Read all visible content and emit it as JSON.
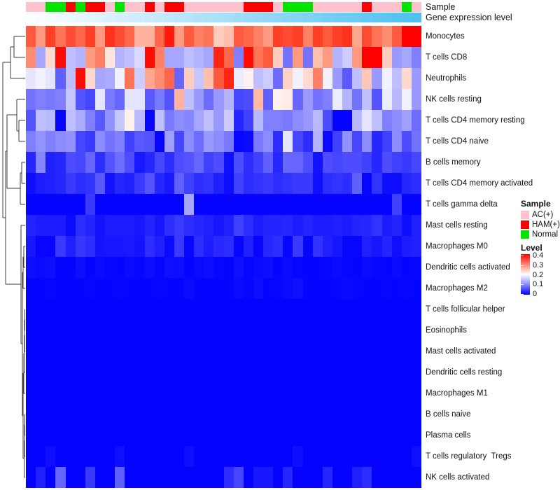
{
  "annotations": {
    "sample": {
      "label": "Sample",
      "colors": {
        "AC(+)": "#FFC2CD",
        "HAM(+)": "#FF0000",
        "Normal": "#00E400"
      }
    },
    "gene": {
      "label": "Gene expression level",
      "gradient_low": "#FDFEFF",
      "gradient_high": "#4FC0F0"
    }
  },
  "legend": {
    "sample": {
      "title": "Sample",
      "items": [
        {
          "label": "AC(+)",
          "color": "#FFC2CD"
        },
        {
          "label": "HAM(+)",
          "color": "#FF0000"
        },
        {
          "label": "Normal",
          "color": "#00E400"
        }
      ]
    },
    "level": {
      "title": "Level",
      "ticks": [
        "0.4",
        "0.3",
        "0.2",
        "0.1",
        "0"
      ]
    }
  },
  "chart_data": {
    "type": "heatmap",
    "n_columns": 40,
    "value_range": [
      0,
      0.4
    ],
    "colormap": {
      "low": "#0000FF",
      "mid": "#FFFFFF",
      "high": "#FF0000",
      "midpoint": 0.2
    },
    "rows": [
      "Monocytes",
      "T cells CD8",
      "Neutrophils",
      "NK cells resting",
      "T cells CD4 memory resting",
      "T cells CD4 naive",
      "B cells memory",
      "T cells CD4 memory activated",
      "T cells gamma delta",
      "Mast cells resting",
      "Macrophages M0",
      "Dendritic cells activated",
      "Macrophages M2",
      "T cells follicular helper",
      "Eosinophils",
      "Mast cells activated",
      "Dendritic cells resting",
      "Macrophages M1",
      "B cells naive",
      "Plasma cells",
      "T cells regulatory  Tregs",
      "NK cells activated"
    ],
    "column_annotation_sample": [
      "AC(+)",
      "AC(+)",
      "Normal",
      "Normal",
      "HAM(+)",
      "Normal",
      "HAM(+)",
      "HAM(+)",
      "AC(+)",
      "Normal",
      "AC(+)",
      "AC(+)",
      "HAM(+)",
      "AC(+)",
      "HAM(+)",
      "HAM(+)",
      "AC(+)",
      "AC(+)",
      "AC(+)",
      "AC(+)",
      "AC(+)",
      "AC(+)",
      "HAM(+)",
      "HAM(+)",
      "HAM(+)",
      "AC(+)",
      "Normal",
      "Normal",
      "Normal",
      "AC(+)",
      "AC(+)",
      "AC(+)",
      "AC(+)",
      "AC(+)",
      "HAM(+)",
      "AC(+)",
      "AC(+)",
      "AC(+)",
      "Normal",
      "AC(+)"
    ],
    "column_annotation_gene_expression": [
      0,
      0.026,
      0.051,
      0.077,
      0.103,
      0.128,
      0.154,
      0.179,
      0.205,
      0.231,
      0.256,
      0.282,
      0.308,
      0.333,
      0.359,
      0.385,
      0.41,
      0.436,
      0.462,
      0.487,
      0.513,
      0.538,
      0.564,
      0.59,
      0.615,
      0.641,
      0.667,
      0.692,
      0.718,
      0.744,
      0.769,
      0.795,
      0.821,
      0.846,
      0.872,
      0.897,
      0.923,
      0.949,
      0.974,
      1
    ],
    "values": [
      [
        0.33,
        0.28,
        0.35,
        0.31,
        0.34,
        0.32,
        0.35,
        0.28,
        0.36,
        0.34,
        0.32,
        0.26,
        0.26,
        0.32,
        0.38,
        0.28,
        0.33,
        0.3,
        0.31,
        0.24,
        0.25,
        0.33,
        0.32,
        0.3,
        0.28,
        0.35,
        0.34,
        0.35,
        0.3,
        0.35,
        0.33,
        0.35,
        0.36,
        0.27,
        0.34,
        0.31,
        0.29,
        0.33,
        0.4,
        0.4
      ],
      [
        0.29,
        0.13,
        0.23,
        0.39,
        0.15,
        0.14,
        0.28,
        0.3,
        0.22,
        0.14,
        0.15,
        0.17,
        0.39,
        0.3,
        0.13,
        0.13,
        0.15,
        0.14,
        0.13,
        0.37,
        0.32,
        0.1,
        0.39,
        0.31,
        0.33,
        0.24,
        0.09,
        0.28,
        0.09,
        0.25,
        0.28,
        0.14,
        0.16,
        0.28,
        0.4,
        0.4,
        0.24,
        0.12,
        0.13,
        0.1
      ],
      [
        0.18,
        0.19,
        0.18,
        0.075,
        0.15,
        0.39,
        0.23,
        0.13,
        0.135,
        0.19,
        0.31,
        0.16,
        0.27,
        0.29,
        0.32,
        0.08,
        0.24,
        0.155,
        0.25,
        0.33,
        0.37,
        0.185,
        0.21,
        0.15,
        0.16,
        0.085,
        0.235,
        0.19,
        0.23,
        0.3,
        0.19,
        0.12,
        0.07,
        0.15,
        0.245,
        0.12,
        0.19,
        0.15,
        0.23,
        0.12
      ],
      [
        0.09,
        0.1,
        0.095,
        0.1,
        0.155,
        0.065,
        0.055,
        0.18,
        0.095,
        0.08,
        0.18,
        0.18,
        0.07,
        0.095,
        0.065,
        0.26,
        0.15,
        0.12,
        0.085,
        0.12,
        0.14,
        0.055,
        0.06,
        0.255,
        0.075,
        0.21,
        0.215,
        0.08,
        0.12,
        0.09,
        0.1,
        0.185,
        0.14,
        0.09,
        0.15,
        0.065,
        0.185,
        0.145,
        0.19,
        0.12
      ],
      [
        0.065,
        0.15,
        0.145,
        0.005,
        0.15,
        0.135,
        0.1,
        0.07,
        0.115,
        0.155,
        0.21,
        0.145,
        0.005,
        0.15,
        0.095,
        0.11,
        0.105,
        0.13,
        0.15,
        0.12,
        0.16,
        0.03,
        0.05,
        0.145,
        0.1,
        0.1,
        0.095,
        0.11,
        0.12,
        0.145,
        0.06,
        0.003,
        0.003,
        0.145,
        0.18,
        0.15,
        0.1,
        0.11,
        0.125,
        0.085
      ],
      [
        0.1,
        0.115,
        0.1,
        0.11,
        0.115,
        0.055,
        0.045,
        0.11,
        0.09,
        0.1,
        0.05,
        0.07,
        0.065,
        0.005,
        0.125,
        0.055,
        0.11,
        0.085,
        0.12,
        0.11,
        0.095,
        0.005,
        0.008,
        0.095,
        0.11,
        0.035,
        0.18,
        0.055,
        0.035,
        0.14,
        0.008,
        0.05,
        0.115,
        0.055,
        0.11,
        0.03,
        0.05,
        0.11,
        0.06,
        0.09
      ],
      [
        0.03,
        0.105,
        0.025,
        0.03,
        0.06,
        0.055,
        0.08,
        0.035,
        0.065,
        0.085,
        0.06,
        0.02,
        0.03,
        0.055,
        0.035,
        0.06,
        0.065,
        0.08,
        0.05,
        0.06,
        0.012,
        0.06,
        0.035,
        0.05,
        0.075,
        0.03,
        0.08,
        0.08,
        0.06,
        0.015,
        0.06,
        0.055,
        0.06,
        0.06,
        0.05,
        0.03,
        0.06,
        0.05,
        0.045,
        0.055
      ],
      [
        0.012,
        0.022,
        0.025,
        0.03,
        0.045,
        0.035,
        0.04,
        0.07,
        0.015,
        0.03,
        0.025,
        0.045,
        0.065,
        0.03,
        0.02,
        0.075,
        0.05,
        0.035,
        0.04,
        0.025,
        0.01,
        0.05,
        0.035,
        0.04,
        0.045,
        0.035,
        0.04,
        0.045,
        0.045,
        0.012,
        0.035,
        0.04,
        0.035,
        0.075,
        0.005,
        0.04,
        0.01,
        0.01,
        0.03,
        0.035
      ],
      [
        0.003,
        0.003,
        0.003,
        0.003,
        0.003,
        0.003,
        0.045,
        0.003,
        0.003,
        0.003,
        0.003,
        0.003,
        0.003,
        0.003,
        0.003,
        0.003,
        0.13,
        0.003,
        0.003,
        0.003,
        0.003,
        0.003,
        0.003,
        0.003,
        0.003,
        0.003,
        0.003,
        0.003,
        0.003,
        0.003,
        0.003,
        0.003,
        0.003,
        0.003,
        0.003,
        0.003,
        0.003,
        0.05,
        0.003,
        0.003
      ],
      [
        0.028,
        0.022,
        0.022,
        0.022,
        0.008,
        0.035,
        0.028,
        0.015,
        0.022,
        0.022,
        0.022,
        0.018,
        0.028,
        0.018,
        0.035,
        0.045,
        0.035,
        0.03,
        0.025,
        0.018,
        0.025,
        0.05,
        0.035,
        0.022,
        0.028,
        0.028,
        0.03,
        0.022,
        0.028,
        0.022,
        0.022,
        0.025,
        0.022,
        0.028,
        0.03,
        0.04,
        0.022,
        0.028,
        0.012,
        0.025
      ],
      [
        0.018,
        0.005,
        0.005,
        0.045,
        0.025,
        0.042,
        0.035,
        0.015,
        0.018,
        0.018,
        0.02,
        0.015,
        0.035,
        0.025,
        0.008,
        0.045,
        0.005,
        0.035,
        0.022,
        0.032,
        0.035,
        0.005,
        0.025,
        0.005,
        0.03,
        0.035,
        0.005,
        0.045,
        0.005,
        0.04,
        0.025,
        0.018,
        0.005,
        0.005,
        0.025,
        0.018,
        0.028,
        0.012,
        0.022,
        0.025
      ],
      [
        0.01,
        0.008,
        0.012,
        0.003,
        0.003,
        0.01,
        0.003,
        0.008,
        0.005,
        0.003,
        0.008,
        0.005,
        0.01,
        0.005,
        0.012,
        0.01,
        0.003,
        0.008,
        0.01,
        0.005,
        0.003,
        0.012,
        0.005,
        0.008,
        0.01,
        0.003,
        0.008,
        0.005,
        0.003,
        0.003,
        0.005,
        0.008,
        0.005,
        0.003,
        0.008,
        0.005,
        0.003,
        0.008,
        0.003,
        0.005
      ],
      [
        0.003,
        0.003,
        0.005,
        0.003,
        0.003,
        0.003,
        0.005,
        0.003,
        0.003,
        0.005,
        0.003,
        0.003,
        0.003,
        0.005,
        0.003,
        0.003,
        0.008,
        0.003,
        0.003,
        0.003,
        0.003,
        0.008,
        0.005,
        0.01,
        0.003,
        0.005,
        0.008,
        0.012,
        0.003,
        0.003,
        0.003,
        0.005,
        0.008,
        0.005,
        0.003,
        0.003,
        0.005,
        0.003,
        0.005,
        0.003
      ],
      [
        0.002,
        0.002,
        0.002,
        0.002,
        0.002,
        0.002,
        0.002,
        0.002,
        0.002,
        0.002,
        0.002,
        0.002,
        0.002,
        0.002,
        0.002,
        0.002,
        0.002,
        0.002,
        0.002,
        0.002,
        0.002,
        0.002,
        0.002,
        0.002,
        0.002,
        0.002,
        0.002,
        0.002,
        0.002,
        0.002,
        0.002,
        0.002,
        0.002,
        0.002,
        0.002,
        0.002,
        0.002,
        0.002,
        0.002,
        0.002
      ],
      [
        0.002,
        0.002,
        0.002,
        0.002,
        0.002,
        0.002,
        0.002,
        0.002,
        0.002,
        0.002,
        0.002,
        0.002,
        0.002,
        0.002,
        0.002,
        0.002,
        0.002,
        0.002,
        0.002,
        0.002,
        0.002,
        0.002,
        0.002,
        0.002,
        0.002,
        0.002,
        0.002,
        0.002,
        0.002,
        0.002,
        0.002,
        0.002,
        0.002,
        0.002,
        0.002,
        0.002,
        0.002,
        0.002,
        0.002,
        0.002
      ],
      [
        0.002,
        0.002,
        0.002,
        0.002,
        0.002,
        0.002,
        0.002,
        0.002,
        0.002,
        0.002,
        0.002,
        0.002,
        0.002,
        0.002,
        0.002,
        0.002,
        0.002,
        0.002,
        0.002,
        0.002,
        0.002,
        0.002,
        0.002,
        0.002,
        0.002,
        0.002,
        0.002,
        0.002,
        0.002,
        0.002,
        0.002,
        0.002,
        0.002,
        0.002,
        0.002,
        0.002,
        0.002,
        0.002,
        0.002,
        0.002
      ],
      [
        0.002,
        0.002,
        0.002,
        0.002,
        0.002,
        0.002,
        0.002,
        0.002,
        0.002,
        0.002,
        0.002,
        0.002,
        0.002,
        0.002,
        0.002,
        0.002,
        0.002,
        0.002,
        0.002,
        0.002,
        0.002,
        0.002,
        0.002,
        0.002,
        0.002,
        0.002,
        0.002,
        0.002,
        0.002,
        0.002,
        0.002,
        0.002,
        0.002,
        0.002,
        0.002,
        0.002,
        0.002,
        0.002,
        0.002,
        0.002
      ],
      [
        0.002,
        0.002,
        0.002,
        0.002,
        0.002,
        0.002,
        0.002,
        0.002,
        0.002,
        0.002,
        0.002,
        0.002,
        0.002,
        0.002,
        0.002,
        0.002,
        0.002,
        0.002,
        0.002,
        0.002,
        0.002,
        0.002,
        0.002,
        0.002,
        0.002,
        0.002,
        0.002,
        0.002,
        0.002,
        0.002,
        0.002,
        0.002,
        0.002,
        0.002,
        0.002,
        0.002,
        0.002,
        0.002,
        0.002,
        0.002
      ],
      [
        0.002,
        0.002,
        0.002,
        0.002,
        0.002,
        0.002,
        0.002,
        0.002,
        0.002,
        0.002,
        0.002,
        0.002,
        0.002,
        0.002,
        0.002,
        0.002,
        0.002,
        0.002,
        0.002,
        0.002,
        0.002,
        0.002,
        0.002,
        0.002,
        0.002,
        0.002,
        0.002,
        0.002,
        0.002,
        0.002,
        0.002,
        0.002,
        0.002,
        0.002,
        0.002,
        0.002,
        0.002,
        0.002,
        0.002,
        0.002
      ],
      [
        0.002,
        0.002,
        0.002,
        0.002,
        0.002,
        0.002,
        0.002,
        0.002,
        0.002,
        0.002,
        0.002,
        0.002,
        0.002,
        0.002,
        0.002,
        0.002,
        0.002,
        0.002,
        0.002,
        0.002,
        0.002,
        0.002,
        0.002,
        0.002,
        0.002,
        0.002,
        0.002,
        0.002,
        0.002,
        0.002,
        0.002,
        0.002,
        0.002,
        0.002,
        0.002,
        0.002,
        0.002,
        0.002,
        0.002,
        0.002
      ],
      [
        0.002,
        0.002,
        0.012,
        0.002,
        0.002,
        0.002,
        0.002,
        0.002,
        0.002,
        0.012,
        0.002,
        0.002,
        0.002,
        0.002,
        0.002,
        0.002,
        0.012,
        0.002,
        0.002,
        0.002,
        0.002,
        0.002,
        0.002,
        0.002,
        0.002,
        0.002,
        0.002,
        0.012,
        0.002,
        0.002,
        0.002,
        0.002,
        0.002,
        0.002,
        0.002,
        0.002,
        0.002,
        0.002,
        0.002,
        0.012
      ],
      [
        0.002,
        0.025,
        0.002,
        0.08,
        0.002,
        0.002,
        0.045,
        0.002,
        0.002,
        0.075,
        0.002,
        0.002,
        0.002,
        0.002,
        0.002,
        0.002,
        0.002,
        0.002,
        0.002,
        0.002,
        0.035,
        0.055,
        0.002,
        0.018,
        0.018,
        0.002,
        0.03,
        0.002,
        0.002,
        0.002,
        0.03,
        0.002,
        0.002,
        0.025,
        0.035,
        0.002,
        0.002,
        0.002,
        0.002,
        0.002
      ]
    ]
  }
}
